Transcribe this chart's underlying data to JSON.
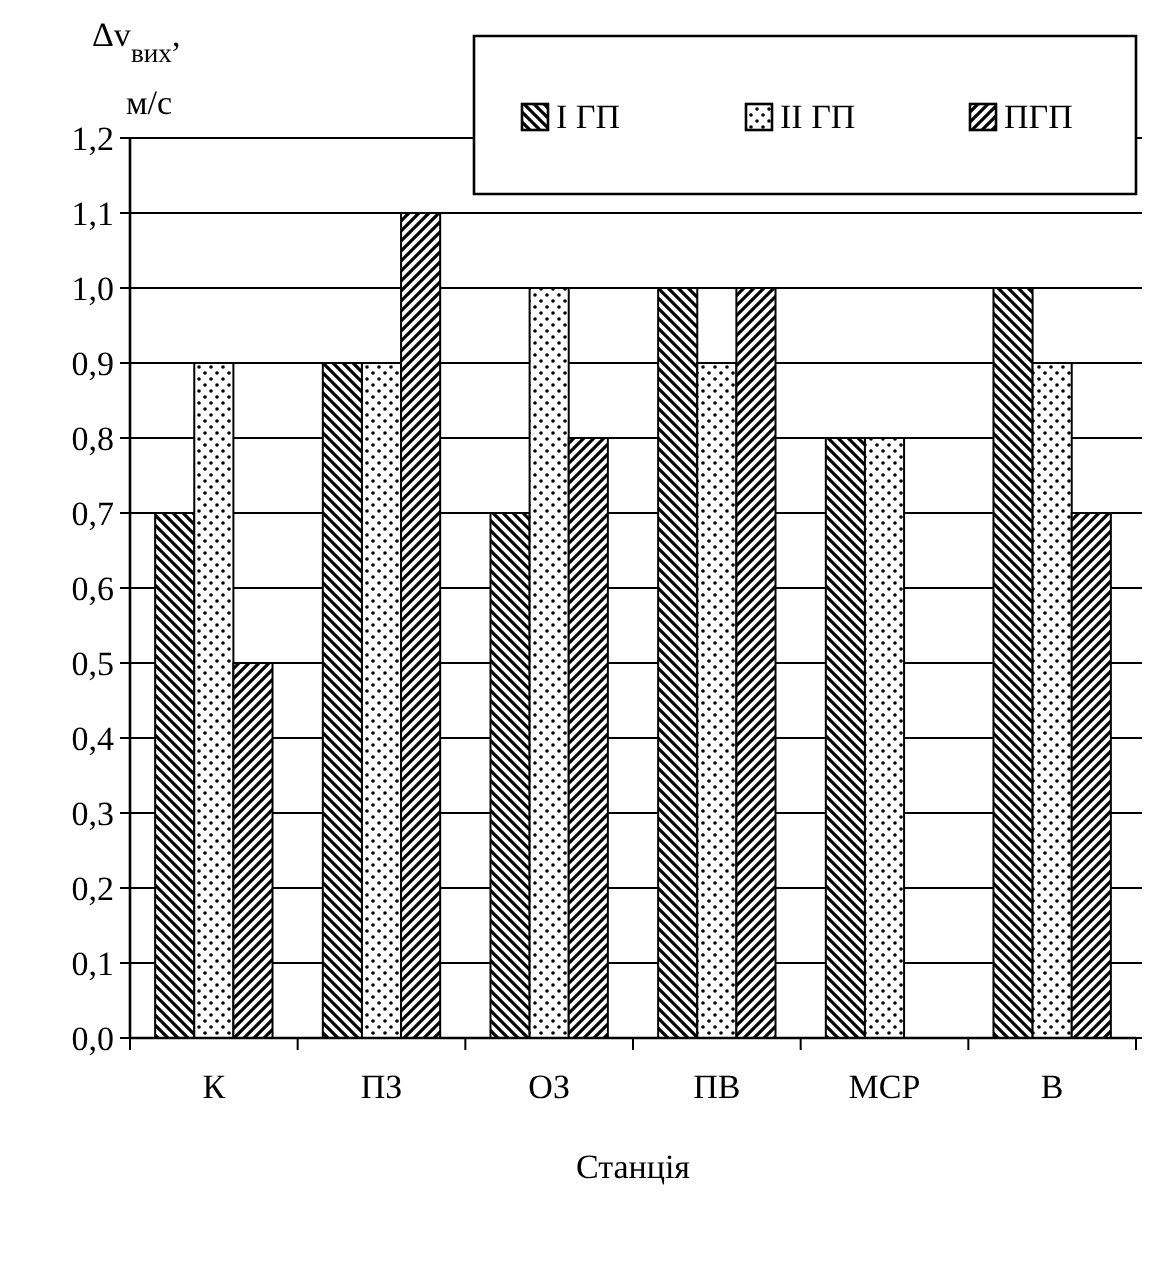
{
  "chart_data": {
    "type": "bar",
    "xlabel": "Станція",
    "ylabel": "Δv$_{вих}$, м/с",
    "categories": [
      "К",
      "ПЗ",
      "ОЗ",
      "ПВ",
      "МСР",
      "В"
    ],
    "series": [
      {
        "name": "І ГП",
        "color": "#000000",
        "values": [
          0.7,
          0.9,
          0.7,
          1.0,
          0.8,
          1.0
        ]
      },
      {
        "name": "ІІ ГП",
        "color": "#000000",
        "values": [
          0.9,
          0.9,
          1.0,
          0.9,
          0.8,
          0.9
        ]
      },
      {
        "name": "ПГП",
        "color": "#000000",
        "values": [
          0.5,
          1.1,
          0.8,
          1.0,
          null,
          0.7
        ]
      }
    ],
    "ylim": [
      0,
      1.2
    ],
    "yticks": [
      {
        "value": 0,
        "label": "0,0"
      },
      {
        "value": 0.1,
        "label": "0,1"
      },
      {
        "value": 0.2,
        "label": "0,2"
      },
      {
        "value": 0.3,
        "label": "0,3"
      },
      {
        "value": 0.4,
        "label": "0,4"
      },
      {
        "value": 0.5,
        "label": "0,5"
      },
      {
        "value": 0.6,
        "label": "0,6"
      },
      {
        "value": 0.7,
        "label": "0,7"
      },
      {
        "value": 0.8,
        "label": "0,8"
      },
      {
        "value": 0.9,
        "label": "0,9"
      },
      {
        "value": 1.0,
        "label": "1,0"
      },
      {
        "value": 1.1,
        "label": "1,1"
      },
      {
        "value": 1.2,
        "label": "1,2"
      }
    ],
    "grid": "y",
    "legend": "top right"
  }
}
